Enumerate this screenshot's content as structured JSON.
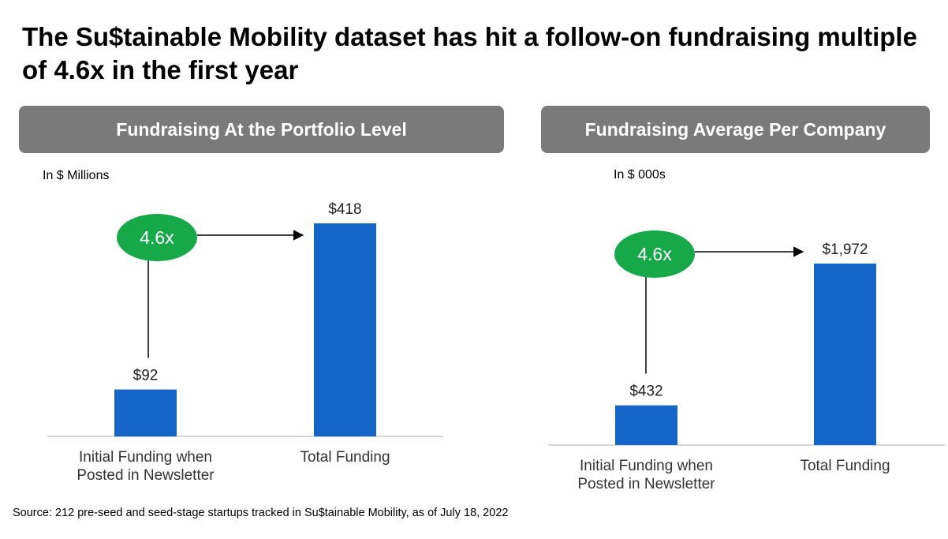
{
  "headline": "The Su$tainable Mobility dataset has hit a follow-on fundraising multiple of 4.6x in the first year",
  "source_note": "Source: 212 pre-seed and seed-stage startups tracked in Su$tainable Mobility, as of July 18, 2022",
  "colors": {
    "bar": "#1565c8",
    "bubble": "#17a84a",
    "header": "#7a7a7a"
  },
  "chart_data": [
    {
      "type": "bar",
      "title": "Fundraising At the Portfolio Level",
      "unit_label": "In $ Millions",
      "categories": [
        "Initial Funding when Posted in Newsletter",
        "Total Funding"
      ],
      "category_lines": [
        [
          "Initial Funding when",
          "Posted in Newsletter"
        ],
        [
          "Total Funding"
        ]
      ],
      "values": [
        92,
        418
      ],
      "value_labels": [
        "$92",
        "$418"
      ],
      "multiple_label": "4.6x"
    },
    {
      "type": "bar",
      "title": "Fundraising Average Per Company",
      "unit_label": "In $ 000s",
      "categories": [
        "Initial Funding when Posted in Newsletter",
        "Total Funding"
      ],
      "category_lines": [
        [
          "Initial Funding when",
          "Posted in Newsletter"
        ],
        [
          "Total Funding"
        ]
      ],
      "values": [
        432,
        1972
      ],
      "value_labels": [
        "$432",
        "$1,972"
      ],
      "multiple_label": "4.6x"
    }
  ]
}
